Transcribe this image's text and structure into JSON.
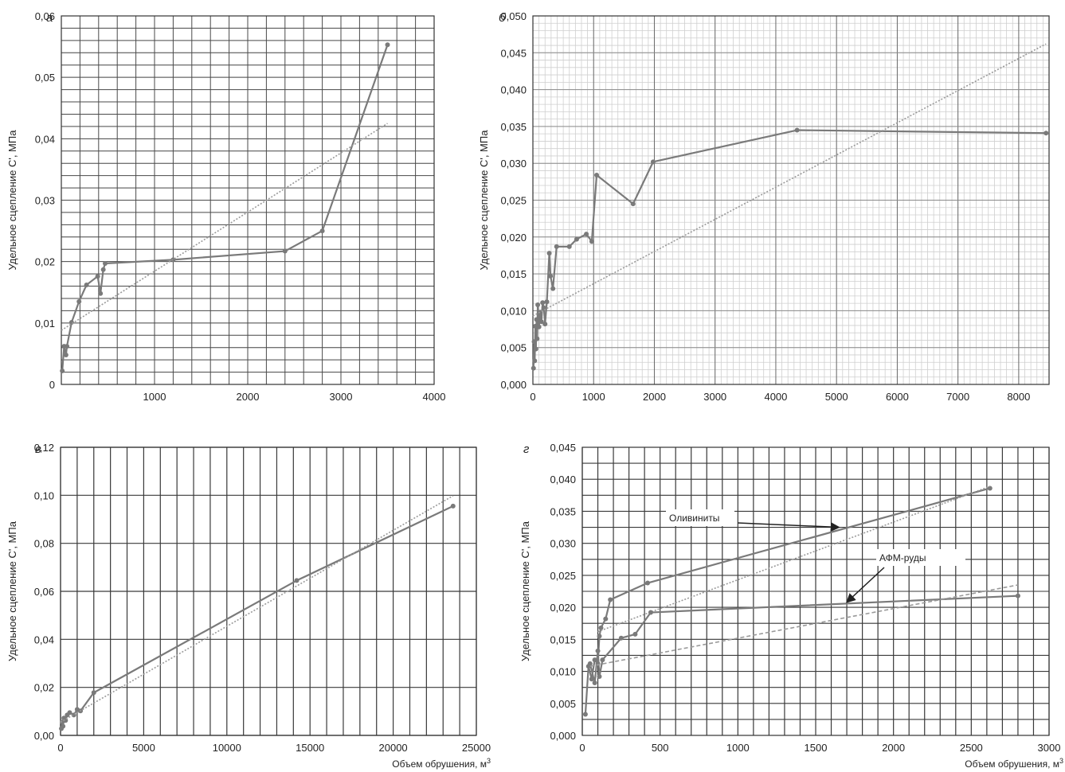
{
  "chart_data": [
    {
      "type": "line",
      "panel_label": "а",
      "xlabel": "",
      "ylabel": "Удельное сцепление C', МПа",
      "xlim": [
        0,
        4000
      ],
      "ylim": [
        0,
        0.06
      ],
      "x_ticks": [
        "1000",
        "2000",
        "3000",
        "4000"
      ],
      "y_ticks": [
        "0",
        "0,01",
        "0,02",
        "0,03",
        "0,04",
        "0,05",
        "0,06"
      ],
      "grid": true,
      "series": [
        {
          "kind": "data",
          "color": "#7a7a7a",
          "points": [
            [
              10,
              0.0022
            ],
            [
              30,
              0.0062
            ],
            [
              50,
              0.0048
            ],
            [
              60,
              0.0062
            ],
            [
              110,
              0.0101
            ],
            [
              190,
              0.0135
            ],
            [
              270,
              0.0162
            ],
            [
              390,
              0.0176
            ],
            [
              420,
              0.0148
            ],
            [
              450,
              0.0187
            ],
            [
              470,
              0.0197
            ],
            [
              1200,
              0.0203
            ],
            [
              2400,
              0.0217
            ],
            [
              2800,
              0.025
            ],
            [
              3500,
              0.0553
            ]
          ]
        },
        {
          "kind": "trend",
          "color": "#9a9a9a",
          "points": [
            [
              0,
              0.0088
            ],
            [
              3500,
              0.0425
            ]
          ]
        }
      ]
    },
    {
      "type": "line",
      "panel_label": "б",
      "xlabel": "",
      "ylabel": "Удельное сцепление C', МПа",
      "xlim": [
        0,
        8500
      ],
      "ylim": [
        0,
        0.05
      ],
      "x_ticks": [
        "0",
        "1000",
        "2000",
        "3000",
        "4000",
        "5000",
        "6000",
        "7000",
        "8000"
      ],
      "y_ticks": [
        "0,000",
        "0,005",
        "0,010",
        "0,015",
        "0,020",
        "0,025",
        "0,030",
        "0,035",
        "0,040",
        "0,045",
        "0,050"
      ],
      "grid": true,
      "series": [
        {
          "kind": "data",
          "color": "#7a7a7a",
          "points": [
            [
              10,
              0.0022
            ],
            [
              20,
              0.0058
            ],
            [
              30,
              0.0032
            ],
            [
              40,
              0.0079
            ],
            [
              50,
              0.0048
            ],
            [
              60,
              0.0088
            ],
            [
              70,
              0.0062
            ],
            [
              80,
              0.0108
            ],
            [
              100,
              0.0078
            ],
            [
              120,
              0.0098
            ],
            [
              140,
              0.0085
            ],
            [
              160,
              0.0111
            ],
            [
              180,
              0.0104
            ],
            [
              200,
              0.0082
            ],
            [
              230,
              0.0112
            ],
            [
              270,
              0.0178
            ],
            [
              290,
              0.0147
            ],
            [
              330,
              0.013
            ],
            [
              390,
              0.0187
            ],
            [
              600,
              0.0187
            ],
            [
              720,
              0.0197
            ],
            [
              880,
              0.0204
            ],
            [
              970,
              0.0194
            ],
            [
              1050,
              0.0284
            ],
            [
              1650,
              0.0245
            ],
            [
              1980,
              0.0302
            ],
            [
              4350,
              0.0345
            ],
            [
              8450,
              0.0341
            ]
          ]
        },
        {
          "kind": "trend",
          "color": "#9a9a9a",
          "points": [
            [
              0,
              0.0093
            ],
            [
              8450,
              0.0462
            ]
          ]
        }
      ]
    },
    {
      "type": "line",
      "panel_label": "в",
      "xlabel": "Объем обрушения, м3",
      "ylabel": "Удельное сцепление C', МПа",
      "xlim": [
        0,
        25000
      ],
      "ylim": [
        0,
        0.12
      ],
      "x_ticks": [
        "0",
        "5000",
        "10000",
        "15000",
        "20000",
        "25000"
      ],
      "y_ticks": [
        "0,00",
        "0,02",
        "0,04",
        "0,06",
        "0,08",
        "0,10",
        "0,12"
      ],
      "grid": true,
      "series": [
        {
          "kind": "data",
          "color": "#7a7a7a",
          "points": [
            [
              50,
              0.0028
            ],
            [
              100,
              0.0055
            ],
            [
              150,
              0.0038
            ],
            [
              200,
              0.0072
            ],
            [
              300,
              0.0062
            ],
            [
              400,
              0.0085
            ],
            [
              550,
              0.0095
            ],
            [
              800,
              0.0085
            ],
            [
              1000,
              0.0108
            ],
            [
              1200,
              0.0102
            ],
            [
              2000,
              0.0178
            ],
            [
              14200,
              0.0645
            ],
            [
              23600,
              0.0955
            ]
          ]
        },
        {
          "kind": "trend",
          "color": "#9a9a9a",
          "points": [
            [
              0,
              0.0055
            ],
            [
              23600,
              0.0998
            ]
          ]
        }
      ]
    },
    {
      "type": "line",
      "panel_label": "г",
      "xlabel": "Объем обрушения, м3",
      "ylabel": "Удельное сцепление C', МПа",
      "xlim": [
        0,
        3000
      ],
      "ylim": [
        0,
        0.045
      ],
      "x_ticks": [
        "0",
        "500",
        "1000",
        "1500",
        "2000",
        "2500",
        "3000"
      ],
      "y_ticks": [
        "0,000",
        "0,005",
        "0,010",
        "0,015",
        "0,020",
        "0,025",
        "0,030",
        "0,035",
        "0,040",
        "0,045"
      ],
      "grid": true,
      "series": [
        {
          "name": "Оливиниты",
          "kind": "data",
          "color": "#7a7a7a",
          "points": [
            [
              20,
              0.0033
            ],
            [
              40,
              0.0108
            ],
            [
              60,
              0.0088
            ],
            [
              80,
              0.0118
            ],
            [
              100,
              0.0112
            ],
            [
              110,
              0.0155
            ],
            [
              120,
              0.0168
            ],
            [
              150,
              0.0182
            ],
            [
              180,
              0.0212
            ],
            [
              420,
              0.0238
            ],
            [
              2620,
              0.0386
            ]
          ]
        },
        {
          "kind": "trend",
          "color": "#9a9a9a",
          "points": [
            [
              100,
              0.0162
            ],
            [
              2620,
              0.0389
            ]
          ]
        },
        {
          "name": "АФМ-руды",
          "kind": "data",
          "color": "#7a7a7a",
          "points": [
            [
              50,
              0.0112
            ],
            [
              80,
              0.0082
            ],
            [
              100,
              0.0132
            ],
            [
              110,
              0.0092
            ],
            [
              130,
              0.0118
            ],
            [
              250,
              0.0152
            ],
            [
              340,
              0.0158
            ],
            [
              440,
              0.0192
            ],
            [
              2800,
              0.0218
            ]
          ]
        },
        {
          "kind": "trend-dashed",
          "color": "#9a9a9a",
          "points": [
            [
              50,
              0.0108
            ],
            [
              2800,
              0.0235
            ]
          ]
        }
      ],
      "annotations": [
        {
          "text": "Оливиниты",
          "arrow_to": [
            1650,
            0.0325
          ]
        },
        {
          "text": "АФМ-руды",
          "arrow_to": [
            1700,
            0.0208
          ]
        }
      ]
    }
  ],
  "units": {
    "superscript": "3"
  }
}
